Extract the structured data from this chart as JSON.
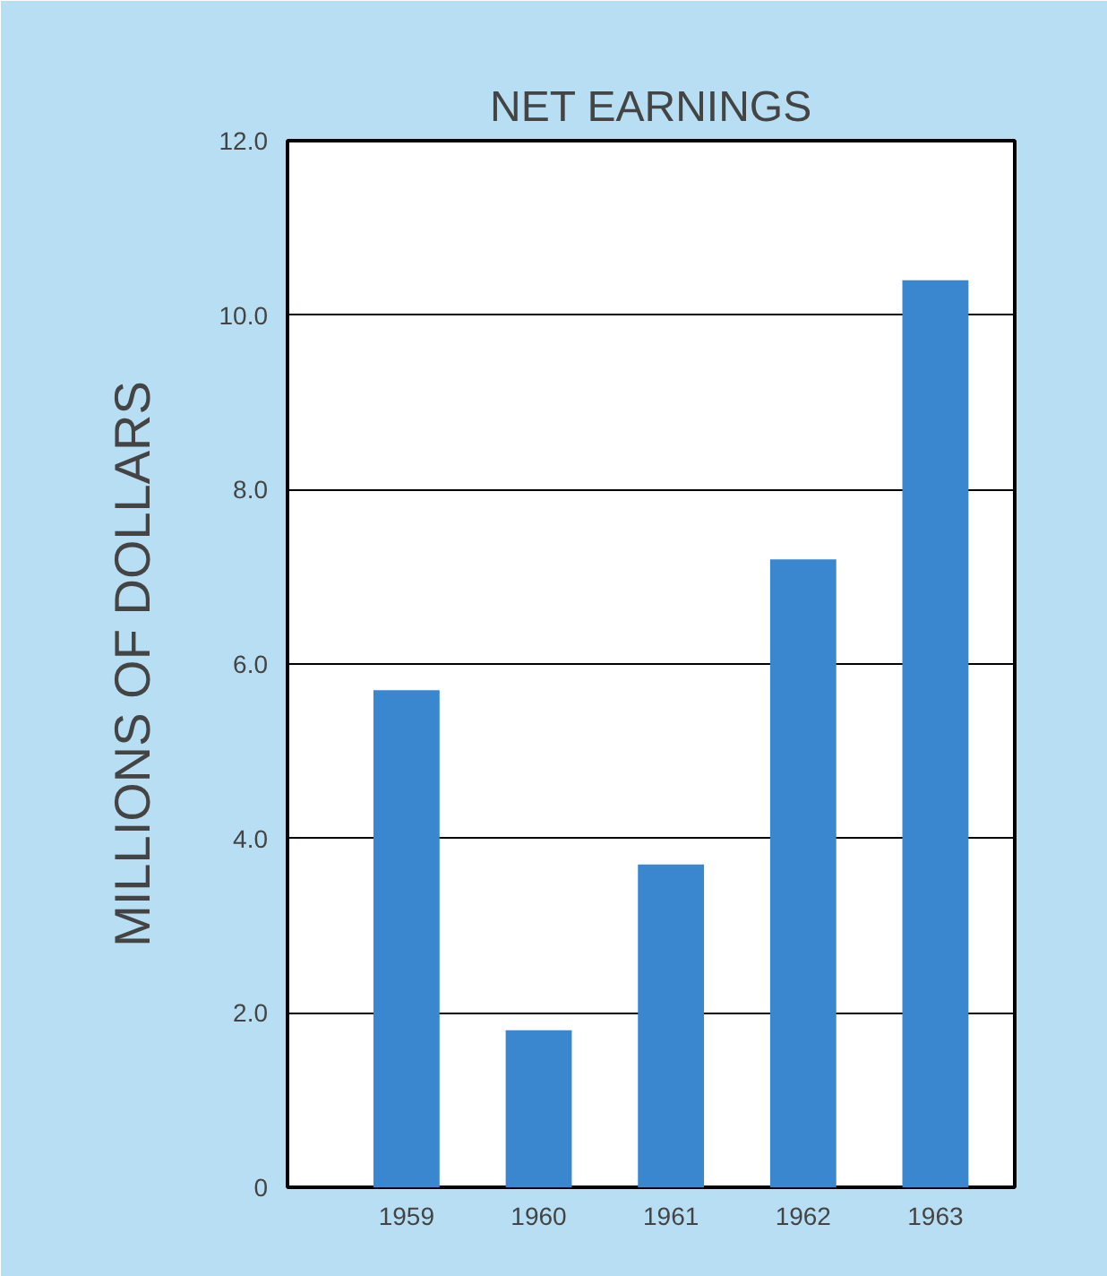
{
  "chart_data": {
    "type": "bar",
    "title": "NET EARNINGS",
    "ylabel": "MILLIONS OF DOLLARS",
    "categories": [
      "1959",
      "1960",
      "1961",
      "1962",
      "1963"
    ],
    "values": [
      5.7,
      1.8,
      3.7,
      7.2,
      10.4
    ],
    "color": "#3a87d0",
    "ylim": [
      0,
      12
    ],
    "yticks": [
      {
        "value": 0,
        "label": "0"
      },
      {
        "value": 2,
        "label": "2.0"
      },
      {
        "value": 4,
        "label": "4.0"
      },
      {
        "value": 6,
        "label": "6.0"
      },
      {
        "value": 8,
        "label": "8.0"
      },
      {
        "value": 10,
        "label": "10.0"
      },
      {
        "value": 12,
        "label": "12.0"
      }
    ],
    "grid": "y"
  }
}
